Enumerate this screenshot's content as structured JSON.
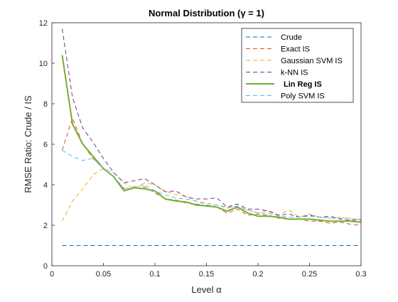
{
  "chart_data": {
    "type": "line",
    "title": "Normal Distribution (γ = 1)",
    "xlabel": "Level α",
    "ylabel": "RMSE Ratio: Crude / IS",
    "xlim": [
      0,
      0.3
    ],
    "ylim": [
      0,
      12
    ],
    "xticks": [
      0,
      0.05,
      0.1,
      0.15,
      0.2,
      0.25,
      0.3
    ],
    "xtick_labels": [
      "0",
      "0.05",
      "0.1",
      "0.15",
      "0.2",
      "0.25",
      "0.3"
    ],
    "yticks": [
      0,
      2,
      4,
      6,
      8,
      10,
      12
    ],
    "ytick_labels": [
      "0",
      "2",
      "4",
      "6",
      "8",
      "10",
      "12"
    ],
    "grid": false,
    "legend_position": "top-right",
    "x": [
      0.01,
      0.02,
      0.03,
      0.04,
      0.05,
      0.06,
      0.07,
      0.08,
      0.09,
      0.1,
      0.11,
      0.12,
      0.13,
      0.14,
      0.15,
      0.16,
      0.17,
      0.18,
      0.19,
      0.2,
      0.21,
      0.22,
      0.23,
      0.24,
      0.25,
      0.26,
      0.27,
      0.28,
      0.29,
      0.3
    ],
    "series": [
      {
        "name": "Crude",
        "color": "#0072BD",
        "style": "dashed",
        "values": [
          1,
          1,
          1,
          1,
          1,
          1,
          1,
          1,
          1,
          1,
          1,
          1,
          1,
          1,
          1,
          1,
          1,
          1,
          1,
          1,
          1,
          1,
          1,
          1,
          1,
          1,
          1,
          1,
          1,
          1
        ]
      },
      {
        "name": "Exact IS",
        "color": "#D95319",
        "style": "dashed",
        "values": [
          5.7,
          7.3,
          6.0,
          5.3,
          4.8,
          4.4,
          3.8,
          3.8,
          3.9,
          3.6,
          3.3,
          3.25,
          3.1,
          3.05,
          2.95,
          2.9,
          2.6,
          2.8,
          2.5,
          2.55,
          2.5,
          2.35,
          2.3,
          2.3,
          2.2,
          2.2,
          2.1,
          2.15,
          2.05,
          2.0
        ]
      },
      {
        "name": "Gaussian SVM IS",
        "color": "#EDB120",
        "style": "dashed",
        "values": [
          2.2,
          3.2,
          3.8,
          4.5,
          4.8,
          4.6,
          4.1,
          3.8,
          4.1,
          4.0,
          3.7,
          3.5,
          3.45,
          3.2,
          3.1,
          3.0,
          2.9,
          2.9,
          2.75,
          2.6,
          2.75,
          2.5,
          2.75,
          2.4,
          2.55,
          2.4,
          2.35,
          2.4,
          2.3,
          2.3
        ]
      },
      {
        "name": "k-NN IS",
        "color": "#7E2F8E",
        "style": "dashed",
        "values": [
          11.7,
          8.3,
          6.8,
          6.1,
          5.3,
          4.6,
          4.1,
          4.2,
          4.3,
          4.0,
          3.65,
          3.7,
          3.4,
          3.3,
          3.3,
          3.35,
          2.9,
          3.05,
          2.8,
          2.8,
          2.7,
          2.5,
          2.55,
          2.4,
          2.5,
          2.4,
          2.45,
          2.3,
          2.25,
          2.25
        ]
      },
      {
        "name": "Lin Reg IS",
        "color": "#77AC30",
        "style": "solid",
        "values": [
          10.4,
          7.0,
          6.0,
          5.4,
          4.8,
          4.4,
          3.7,
          3.85,
          3.8,
          3.7,
          3.3,
          3.2,
          3.15,
          3.0,
          2.95,
          2.9,
          2.7,
          2.9,
          2.6,
          2.45,
          2.45,
          2.4,
          2.3,
          2.3,
          2.3,
          2.25,
          2.2,
          2.2,
          2.2,
          2.15
        ]
      },
      {
        "name": "Poly SVM IS",
        "color": "#4DBEEE",
        "style": "dashed",
        "values": [
          5.7,
          5.4,
          5.2,
          5.3,
          4.8,
          4.4,
          3.8,
          3.9,
          4.0,
          3.7,
          3.5,
          3.35,
          3.3,
          3.2,
          3.0,
          3.0,
          2.85,
          2.95,
          2.75,
          2.6,
          2.6,
          2.45,
          2.4,
          2.4,
          2.45,
          2.4,
          2.35,
          2.35,
          2.35,
          2.25
        ]
      }
    ]
  }
}
